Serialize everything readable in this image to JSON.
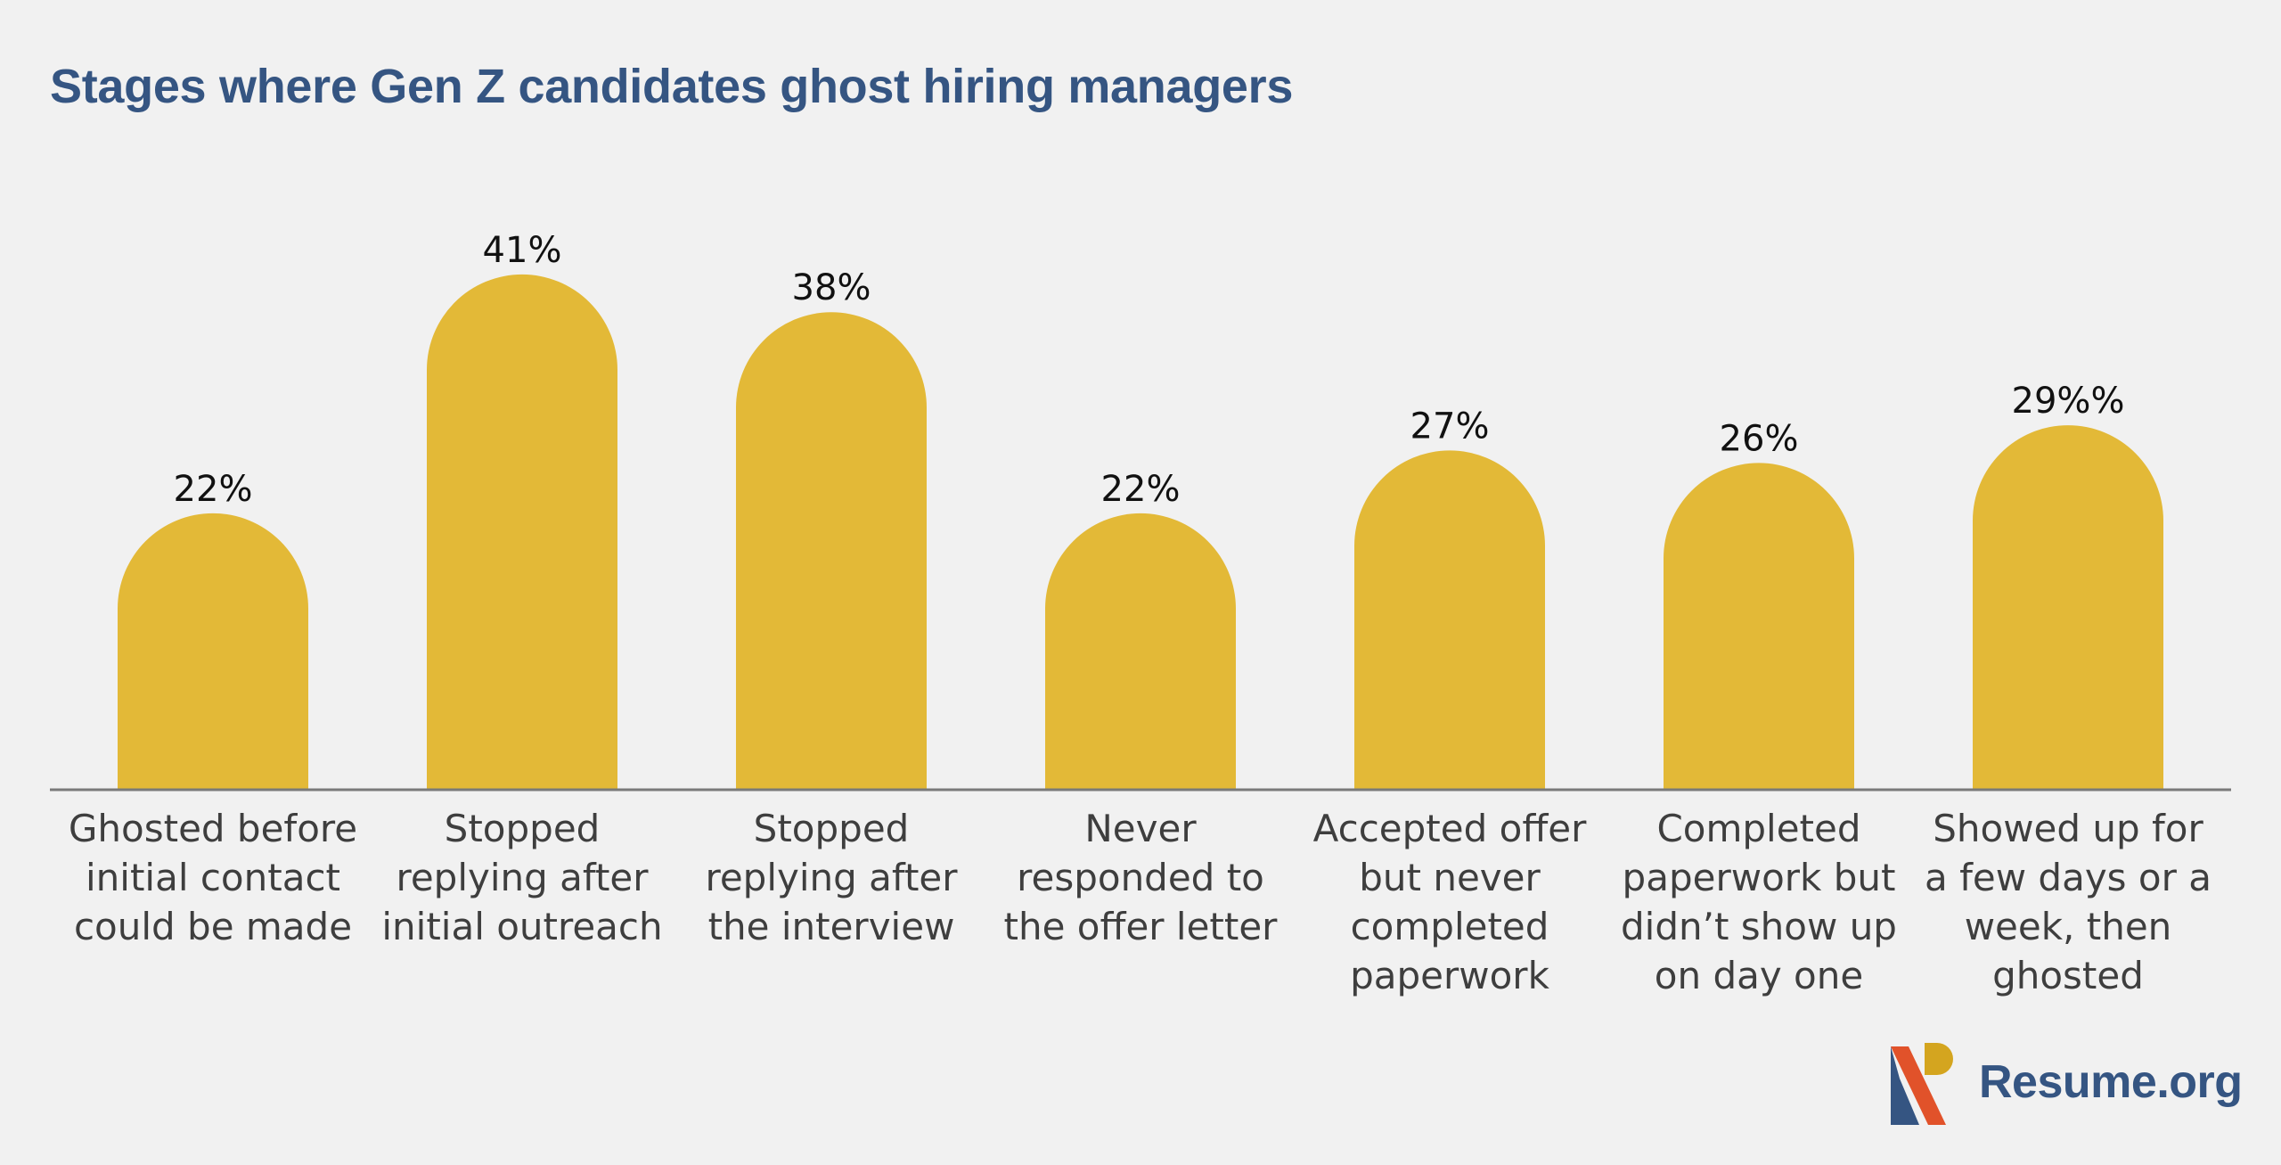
{
  "chart_data": {
    "type": "bar",
    "title": "Stages where Gen Z candidates ghost hiring managers",
    "categories": [
      "Ghosted before initial contact could be made",
      "Stopped replying after initial outreach",
      "Stopped replying after the interview",
      "Never responded to the offer letter",
      "Accepted offer but never completed paperwork",
      "Completed paperwork but didn’t show up on day one",
      "Showed up for a few days or a week, then ghosted"
    ],
    "category_lines": [
      [
        "Ghosted before",
        "initial contact",
        "could be made"
      ],
      [
        "Stopped",
        "replying after",
        "initial outreach"
      ],
      [
        "Stopped",
        "replying after",
        "the interview"
      ],
      [
        "Never",
        "responded to",
        "the offer letter"
      ],
      [
        "Accepted offer",
        "but never",
        "completed",
        "paperwork"
      ],
      [
        "Completed",
        "paperwork but",
        "didn’t show up",
        "on day one"
      ],
      [
        "Showed up for",
        "a few days or a",
        "week, then",
        "ghosted"
      ]
    ],
    "values": [
      22,
      41,
      38,
      22,
      27,
      26,
      29
    ],
    "value_labels": [
      "22%",
      "41%",
      "38%",
      "22%",
      "27%",
      "26%",
      "29%%"
    ],
    "ylim": [
      0,
      41
    ],
    "xlabel": "",
    "ylabel": "",
    "grid": false,
    "legend": "none",
    "colors": {
      "bar": "#e3b937",
      "axis": "#7a7a7a",
      "title": "#355582",
      "value_text": "#111111",
      "category_text": "#3e3e3e",
      "background": "#f1f1f1"
    }
  },
  "brand": {
    "name": "Resume.org",
    "logo_icon": "resume-org-logo-icon",
    "colors": {
      "navy": "#355582",
      "orange": "#e1522a",
      "gold": "#d4a51f"
    }
  }
}
